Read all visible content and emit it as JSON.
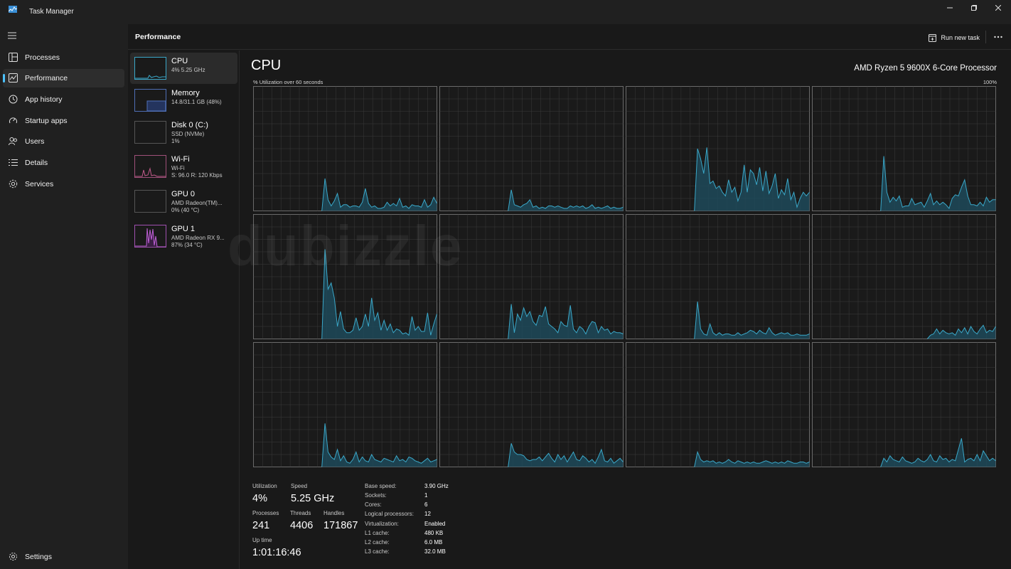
{
  "window": {
    "title": "Task Manager"
  },
  "sidebar": {
    "items": [
      {
        "label": "Processes",
        "icon": "processes-icon"
      },
      {
        "label": "Performance",
        "icon": "performance-icon",
        "active": true
      },
      {
        "label": "App history",
        "icon": "app-history-icon"
      },
      {
        "label": "Startup apps",
        "icon": "startup-apps-icon"
      },
      {
        "label": "Users",
        "icon": "users-icon"
      },
      {
        "label": "Details",
        "icon": "details-icon"
      },
      {
        "label": "Services",
        "icon": "services-icon"
      }
    ],
    "settings_label": "Settings"
  },
  "header": {
    "title": "Performance",
    "run_new_task": "Run new task"
  },
  "devices": [
    {
      "name": "CPU",
      "line1": "4% 5.25 GHz",
      "line2": ""
    },
    {
      "name": "Memory",
      "line1": "14.8/31.1 GB (48%)",
      "line2": ""
    },
    {
      "name": "Disk 0 (C:)",
      "line1": "SSD (NVMe)",
      "line2": "1%"
    },
    {
      "name": "Wi-Fi",
      "line1": "Wi-Fi",
      "line2": "S: 96.0  R: 120 Kbps"
    },
    {
      "name": "GPU 0",
      "line1": "AMD Radeon(TM)...",
      "line2": "0% (40 °C)"
    },
    {
      "name": "GPU 1",
      "line1": "AMD Radeon RX 9...",
      "line2": "87% (34 °C)"
    }
  ],
  "cpu": {
    "title": "CPU",
    "processor": "AMD Ryzen 5 9600X 6-Core Processor",
    "axis_label": "% Utilization over 60 seconds",
    "axis_max": "100%",
    "colors": {
      "line": "#3aa8c9",
      "fill": "#1f4a5a",
      "grid": "#3a3a3a"
    }
  },
  "stats": {
    "utilization_label": "Utilization",
    "utilization": "4%",
    "speed_label": "Speed",
    "speed": "5.25 GHz",
    "processes_label": "Processes",
    "processes": "241",
    "threads_label": "Threads",
    "threads": "4406",
    "handles_label": "Handles",
    "handles": "171867",
    "uptime_label": "Up time",
    "uptime": "1:01:16:46"
  },
  "specs": [
    {
      "k": "Base speed:",
      "v": "3.90 GHz"
    },
    {
      "k": "Sockets:",
      "v": "1"
    },
    {
      "k": "Cores:",
      "v": "6"
    },
    {
      "k": "Logical processors:",
      "v": "12"
    },
    {
      "k": "Virtualization:",
      "v": "Enabled"
    },
    {
      "k": "L1 cache:",
      "v": "480 KB"
    },
    {
      "k": "L2 cache:",
      "v": "6.0 MB"
    },
    {
      "k": "L3 cache:",
      "v": "32.0 MB"
    }
  ],
  "watermark": "dubizzle",
  "chart_data": {
    "type": "area",
    "title": "% Utilization over 60 seconds",
    "ylim": [
      0,
      100
    ],
    "x_points": 60,
    "series": [
      {
        "values": [
          0,
          0,
          0,
          0,
          0,
          0,
          0,
          0,
          0,
          0,
          0,
          0,
          0,
          0,
          0,
          0,
          0,
          0,
          0,
          0,
          0,
          0,
          0,
          26,
          9,
          4,
          8,
          14,
          3,
          5,
          5,
          3,
          4,
          4,
          3,
          7,
          18,
          6,
          3,
          4,
          2,
          2,
          3,
          7,
          4,
          6,
          4,
          10,
          3,
          4,
          2,
          5,
          4,
          4,
          3,
          9,
          3,
          5,
          11,
          6
        ]
      },
      {
        "values": [
          0,
          0,
          0,
          0,
          0,
          0,
          0,
          0,
          0,
          0,
          0,
          0,
          0,
          0,
          0,
          0,
          0,
          0,
          0,
          0,
          0,
          0,
          0,
          17,
          5,
          4,
          3,
          5,
          6,
          9,
          3,
          4,
          2,
          3,
          2,
          4,
          4,
          3,
          4,
          3,
          2,
          2,
          4,
          3,
          4,
          3,
          4,
          2,
          3,
          5,
          2,
          3,
          2,
          3,
          4,
          2,
          3,
          2,
          2,
          3
        ]
      },
      {
        "values": [
          0,
          0,
          0,
          0,
          0,
          0,
          0,
          0,
          0,
          0,
          0,
          0,
          0,
          0,
          0,
          0,
          0,
          0,
          0,
          0,
          0,
          0,
          0,
          50,
          42,
          30,
          51,
          22,
          24,
          18,
          20,
          15,
          12,
          25,
          15,
          19,
          8,
          15,
          37,
          15,
          33,
          30,
          21,
          35,
          16,
          32,
          14,
          20,
          30,
          10,
          17,
          13,
          26,
          9,
          15,
          3,
          10,
          15,
          12,
          15
        ]
      },
      {
        "values": [
          0,
          0,
          0,
          0,
          0,
          0,
          0,
          0,
          0,
          0,
          0,
          0,
          0,
          0,
          0,
          0,
          0,
          0,
          0,
          0,
          0,
          0,
          0,
          44,
          15,
          7,
          11,
          8,
          12,
          3,
          4,
          4,
          10,
          5,
          6,
          7,
          3,
          8,
          14,
          5,
          8,
          5,
          7,
          5,
          2,
          10,
          13,
          12,
          19,
          25,
          12,
          5,
          5,
          4,
          7,
          4,
          11,
          7,
          9,
          9
        ]
      },
      {
        "values": [
          0,
          0,
          0,
          0,
          0,
          0,
          0,
          0,
          0,
          0,
          0,
          0,
          0,
          0,
          0,
          0,
          0,
          0,
          0,
          0,
          0,
          0,
          0,
          72,
          40,
          45,
          33,
          10,
          22,
          8,
          5,
          5,
          7,
          17,
          7,
          10,
          20,
          10,
          33,
          15,
          21,
          7,
          15,
          7,
          12,
          5,
          8,
          7,
          4,
          5,
          3,
          18,
          7,
          10,
          6,
          6,
          21,
          3,
          12,
          20
        ]
      },
      {
        "values": [
          0,
          0,
          0,
          0,
          0,
          0,
          0,
          0,
          0,
          0,
          0,
          0,
          0,
          0,
          0,
          0,
          0,
          0,
          0,
          0,
          0,
          0,
          0,
          28,
          5,
          20,
          15,
          25,
          18,
          22,
          14,
          11,
          19,
          18,
          26,
          12,
          10,
          8,
          5,
          14,
          11,
          10,
          27,
          8,
          5,
          10,
          8,
          4,
          10,
          14,
          13,
          5,
          10,
          7,
          8,
          4,
          6,
          5,
          5,
          4
        ]
      },
      {
        "values": [
          0,
          0,
          0,
          0,
          0,
          0,
          0,
          0,
          0,
          0,
          0,
          0,
          0,
          0,
          0,
          0,
          0,
          0,
          0,
          0,
          0,
          0,
          0,
          30,
          8,
          4,
          3,
          12,
          5,
          3,
          5,
          3,
          4,
          4,
          3,
          3,
          5,
          3,
          4,
          5,
          7,
          6,
          4,
          7,
          5,
          4,
          9,
          5,
          3,
          4,
          5,
          4,
          5,
          3,
          3,
          4,
          3,
          3,
          3,
          4
        ]
      },
      {
        "values": [
          0,
          0,
          0,
          0,
          0,
          0,
          0,
          0,
          0,
          0,
          0,
          0,
          0,
          0,
          0,
          0,
          0,
          0,
          0,
          0,
          0,
          0,
          0,
          0,
          0,
          0,
          0,
          0,
          0,
          0,
          0,
          0,
          0,
          0,
          0,
          0,
          0,
          0,
          3,
          4,
          8,
          4,
          7,
          5,
          4,
          5,
          3,
          8,
          5,
          9,
          4,
          10,
          6,
          4,
          8,
          11,
          5,
          7,
          6,
          10
        ]
      },
      {
        "values": [
          0,
          0,
          0,
          0,
          0,
          0,
          0,
          0,
          0,
          0,
          0,
          0,
          0,
          0,
          0,
          0,
          0,
          0,
          0,
          0,
          0,
          0,
          0,
          35,
          12,
          8,
          6,
          14,
          5,
          9,
          4,
          3,
          6,
          12,
          4,
          8,
          5,
          4,
          10,
          6,
          5,
          4,
          7,
          6,
          5,
          4,
          9,
          5,
          6,
          4,
          8,
          7,
          5,
          4,
          3,
          5,
          7,
          4,
          5,
          6
        ]
      },
      {
        "values": [
          0,
          0,
          0,
          0,
          0,
          0,
          0,
          0,
          0,
          0,
          0,
          0,
          0,
          0,
          0,
          0,
          0,
          0,
          0,
          0,
          0,
          0,
          0,
          19,
          12,
          10,
          10,
          9,
          6,
          5,
          6,
          6,
          8,
          5,
          8,
          11,
          7,
          4,
          10,
          6,
          9,
          4,
          8,
          12,
          6,
          5,
          9,
          7,
          4,
          6,
          3,
          8,
          14,
          5,
          4,
          7,
          3,
          5,
          7,
          4
        ]
      },
      {
        "values": [
          0,
          0,
          0,
          0,
          0,
          0,
          0,
          0,
          0,
          0,
          0,
          0,
          0,
          0,
          0,
          0,
          0,
          0,
          0,
          0,
          0,
          0,
          0,
          12,
          6,
          4,
          5,
          4,
          5,
          3,
          4,
          3,
          4,
          6,
          4,
          3,
          5,
          4,
          3,
          4,
          3,
          4,
          3,
          3,
          4,
          5,
          4,
          3,
          4,
          3,
          4,
          3,
          5,
          4,
          3,
          3,
          4,
          4,
          3,
          4
        ]
      },
      {
        "values": [
          0,
          0,
          0,
          0,
          0,
          0,
          0,
          0,
          0,
          0,
          0,
          0,
          0,
          0,
          0,
          0,
          0,
          0,
          0,
          0,
          0,
          0,
          0,
          7,
          4,
          9,
          6,
          5,
          4,
          8,
          5,
          4,
          3,
          4,
          7,
          5,
          4,
          6,
          10,
          5,
          4,
          9,
          6,
          7,
          4,
          6,
          5,
          14,
          23,
          4,
          6,
          7,
          5,
          10,
          5,
          13,
          9,
          5,
          7,
          5
        ]
      }
    ]
  }
}
